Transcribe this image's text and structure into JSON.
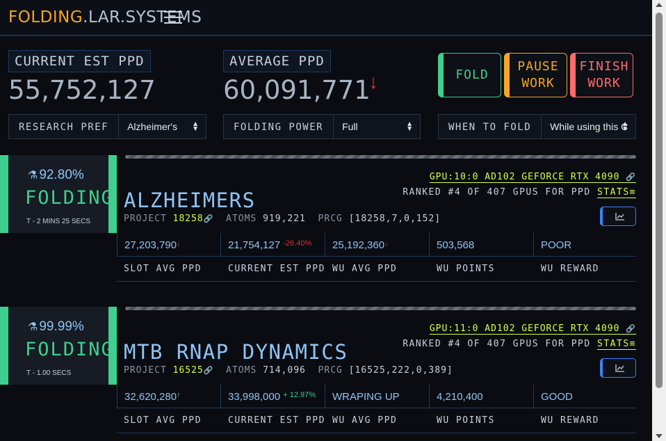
{
  "brand": {
    "part1": "FOLDING",
    "part2": ".LAR.SYSTEMS"
  },
  "stats": {
    "current_label": "CURRENT EST PPD",
    "current_value": "55,752,127",
    "average_label": "AVERAGE PPD",
    "average_value": "60,091,771",
    "average_trend": "↓"
  },
  "actions": {
    "fold": "FOLD",
    "pause_1": "PAUSE",
    "pause_2": "WORK",
    "finish_1": "FINISH",
    "finish_2": "WORK"
  },
  "selects": {
    "research_label": "RESEARCH PREF",
    "research_value": "Alzheimer's",
    "power_label": "FOLDING POWER",
    "power_value": "Full",
    "when_label": "WHEN TO FOLD",
    "when_value": "While using this C"
  },
  "slots": [
    {
      "percent": "92.80%",
      "status": "FOLDING",
      "timer": "T - 2 MINS 25 SECS",
      "gpu": "GPU:10:0 AD102 GEFORCE RTX 4090",
      "ranked": "RANKED #4 OF 407 GPUS FOR PPD",
      "stats_link": "STATS",
      "title": "ALZHEIMERS",
      "project_label": "PROJECT",
      "project": "18258",
      "atoms_label": "ATOMS",
      "atoms": "919,221",
      "prcg_label": "PRCG",
      "prcg": "[18258,7,0,152]",
      "metrics": {
        "slot_avg": "27,203,790",
        "slot_avg_trend": "↓",
        "cur_est": "21,754,127",
        "cur_est_pct": "-26.40%",
        "wu_avg": "25,192,360",
        "wu_avg_trend": "↓",
        "wu_points": "503,568",
        "wu_reward": "POOR"
      }
    },
    {
      "percent": "99.99%",
      "status": "FOLDING",
      "timer": "T - 1.00 SECS",
      "gpu": "GPU:11:0 AD102 GEFORCE RTX 4090",
      "ranked": "RANKED #4 OF 407 GPUS FOR PPD",
      "stats_link": "STATS",
      "title": "MTB RNAP DYNAMICS",
      "project_label": "PROJECT",
      "project": "16525",
      "atoms_label": "ATOMS",
      "atoms": "714,096",
      "prcg_label": "PRCG",
      "prcg": "[16525,222,0,389]",
      "metrics": {
        "slot_avg": "32,620,280",
        "slot_avg_trend": "↑",
        "cur_est": "33,998,000",
        "cur_est_pct": "+ 12.97%",
        "wu_avg": "WRAPING UP",
        "wu_points": "4,210,400",
        "wu_reward": "GOOD"
      }
    }
  ],
  "metric_labels": {
    "slot_avg": "SLOT AVG PPD",
    "cur_est": "CURRENT EST PPD",
    "wu_avg": "WU AVG PPD",
    "wu_points": "WU POINTS",
    "wu_reward": "WU REWARD"
  }
}
